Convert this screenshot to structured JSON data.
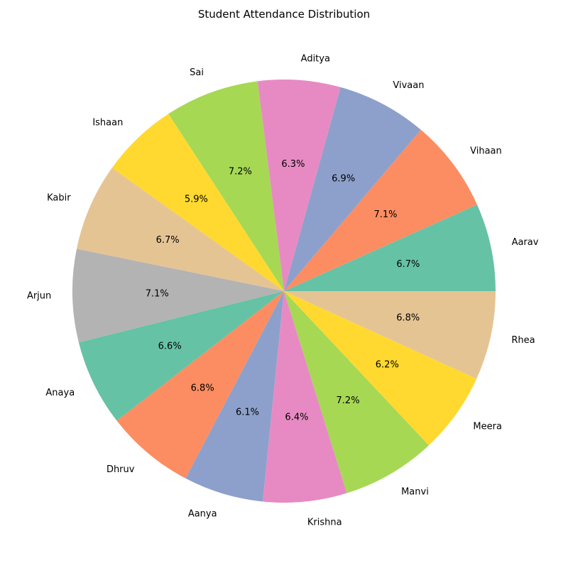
{
  "chart_data": {
    "type": "pie",
    "title": "Student Attendance Distribution",
    "categories": [
      "Aarav",
      "Vihaan",
      "Vivaan",
      "Aditya",
      "Sai",
      "Ishaan",
      "Kabir",
      "Arjun",
      "Anaya",
      "Dhruv",
      "Aanya",
      "Krishna",
      "Manvi",
      "Meera",
      "Rhea"
    ],
    "values": [
      6.7,
      7.1,
      6.9,
      6.3,
      7.2,
      5.9,
      6.7,
      7.1,
      6.6,
      6.8,
      6.1,
      6.4,
      7.2,
      6.2,
      6.8
    ],
    "value_labels": [
      "6.7%",
      "7.1%",
      "6.9%",
      "6.3%",
      "7.2%",
      "5.9%",
      "6.7%",
      "7.1%",
      "6.6%",
      "6.8%",
      "6.1%",
      "6.4%",
      "7.2%",
      "6.2%",
      "6.8%"
    ],
    "colors": [
      "#66c2a5",
      "#fc8d62",
      "#8da0cb",
      "#e78ac3",
      "#a6d854",
      "#ffd92f",
      "#e5c494",
      "#b3b3b3",
      "#66c2a5",
      "#fc8d62",
      "#8da0cb",
      "#e78ac3",
      "#a6d854",
      "#ffd92f",
      "#e5c494"
    ],
    "start_angle_deg": 0,
    "direction": "counterclockwise"
  }
}
